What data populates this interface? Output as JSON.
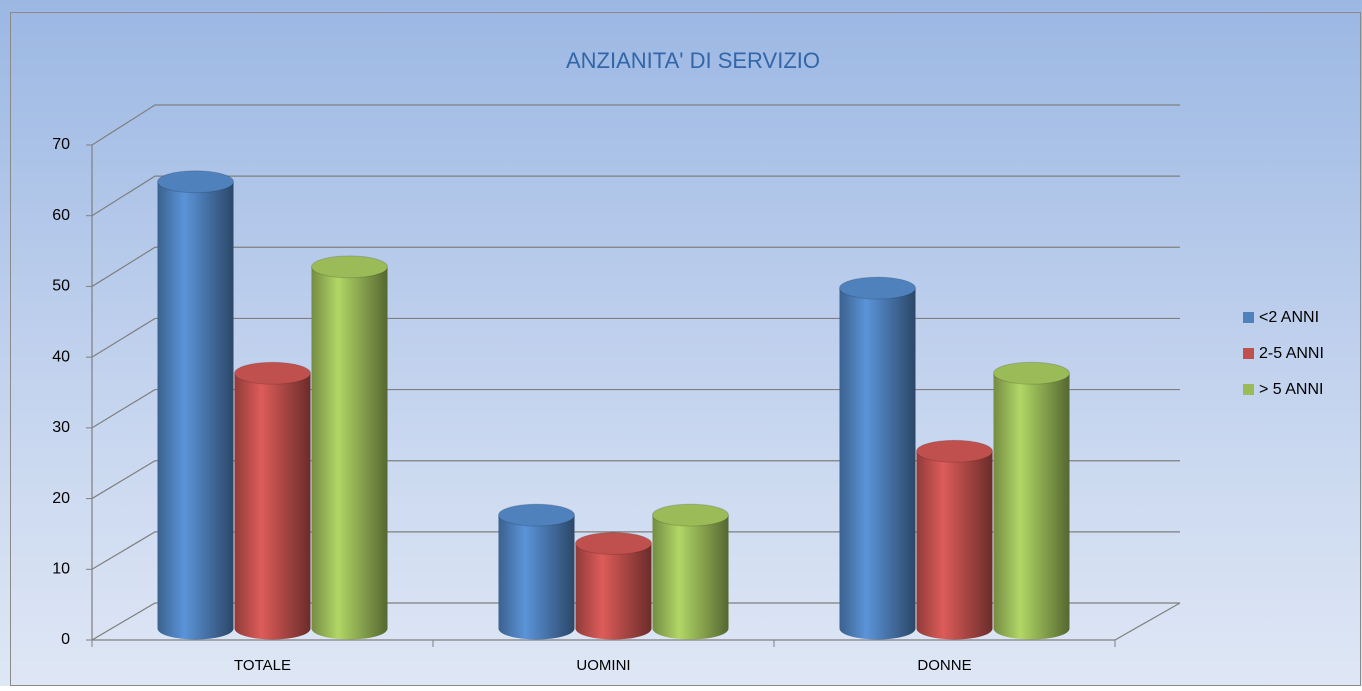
{
  "chart_data": {
    "type": "bar3d",
    "title": "ANZIANITA' DI SERVIZIO",
    "categories": [
      "TOTALE",
      "UOMINI",
      "DONNE"
    ],
    "series": [
      {
        "name": "<2 ANNI",
        "color": "#4f81bd",
        "values": [
          62,
          15,
          47
        ]
      },
      {
        "name": "2-5 ANNI",
        "color": "#c0504d",
        "values": [
          35,
          11,
          24
        ]
      },
      {
        "name": "> 5 ANNI",
        "color": "#9bbb59",
        "values": [
          50,
          15,
          35
        ]
      }
    ],
    "ylim": [
      0,
      70
    ],
    "yticks": [
      0,
      10,
      20,
      30,
      40,
      50,
      60,
      70
    ],
    "grid": true,
    "legend": "right"
  }
}
